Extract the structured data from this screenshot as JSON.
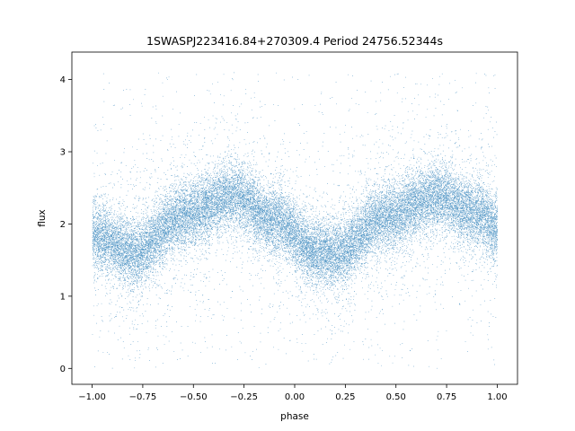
{
  "chart_data": {
    "type": "scatter",
    "title": "1SWASPJ223416.84+270309.4 Period 24756.52344s",
    "xlabel": "phase",
    "ylabel": "flux",
    "xlim": [
      -1.1,
      1.1
    ],
    "ylim": [
      -0.22,
      4.38
    ],
    "x_ticks": [
      -1.0,
      -0.75,
      -0.5,
      -0.25,
      0.0,
      0.25,
      0.5,
      0.75,
      1.0
    ],
    "x_tick_labels": [
      "−1.00",
      "−0.75",
      "−0.50",
      "−0.25",
      "0.00",
      "0.25",
      "0.50",
      "0.75",
      "1.00"
    ],
    "y_ticks": [
      0,
      1,
      2,
      3,
      4
    ],
    "y_tick_labels": [
      "0",
      "1",
      "2",
      "3",
      "4"
    ],
    "grid": false,
    "legend": "none",
    "point_color": "#1f77b4",
    "series": [
      {
        "x_range": [
          -1.0,
          1.0
        ],
        "point_count": 30000,
        "profile_phase": [
          -1.0,
          -0.8,
          -0.55,
          -0.3,
          -0.1,
          0.1,
          0.2,
          0.45,
          0.7,
          0.9,
          1.0
        ],
        "profile_flux": [
          1.85,
          1.6,
          2.1,
          2.38,
          2.05,
          1.62,
          1.58,
          2.1,
          2.38,
          2.15,
          1.95
        ],
        "core_spread": 0.28,
        "outlier_range": [
          0.0,
          4.1
        ]
      }
    ]
  }
}
